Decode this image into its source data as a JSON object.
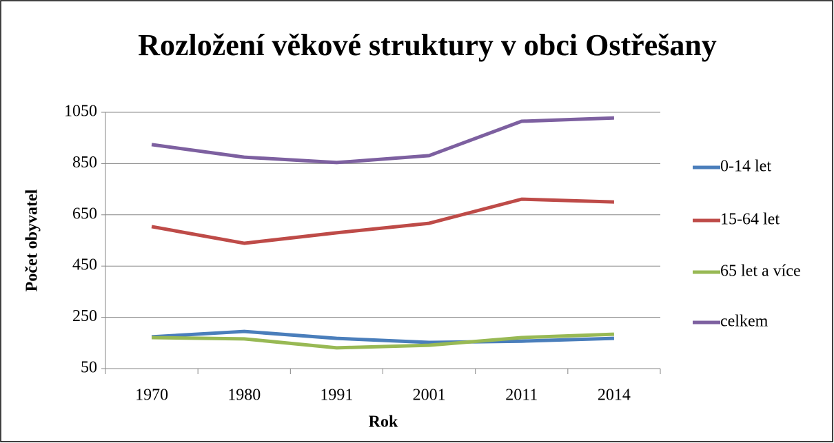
{
  "chart_data": {
    "type": "line",
    "title": "Rozložení věkové struktury v obci Ostřešany",
    "x_label": "Rok",
    "y_label": "Počet obyvatel",
    "categories": [
      "1970",
      "1980",
      "1991",
      "2001",
      "2011",
      "2014"
    ],
    "series": [
      {
        "name": "0-14 let",
        "color": "#4a7ebb",
        "values": [
          174,
          195,
          168,
          152,
          157,
          168
        ]
      },
      {
        "name": "15-64 let",
        "color": "#be4b48",
        "values": [
          604,
          539,
          580,
          617,
          711,
          700
        ]
      },
      {
        "name": "65 let a více",
        "color": "#98b954",
        "values": [
          171,
          166,
          131,
          141,
          171,
          184
        ]
      },
      {
        "name": "celkem",
        "color": "#7d60a0",
        "values": [
          924,
          875,
          854,
          881,
          1015,
          1028
        ]
      }
    ],
    "ylim": [
      50,
      1050
    ],
    "yticks": [
      50,
      250,
      450,
      650,
      850,
      1050
    ],
    "grid": true,
    "legend": "right"
  }
}
